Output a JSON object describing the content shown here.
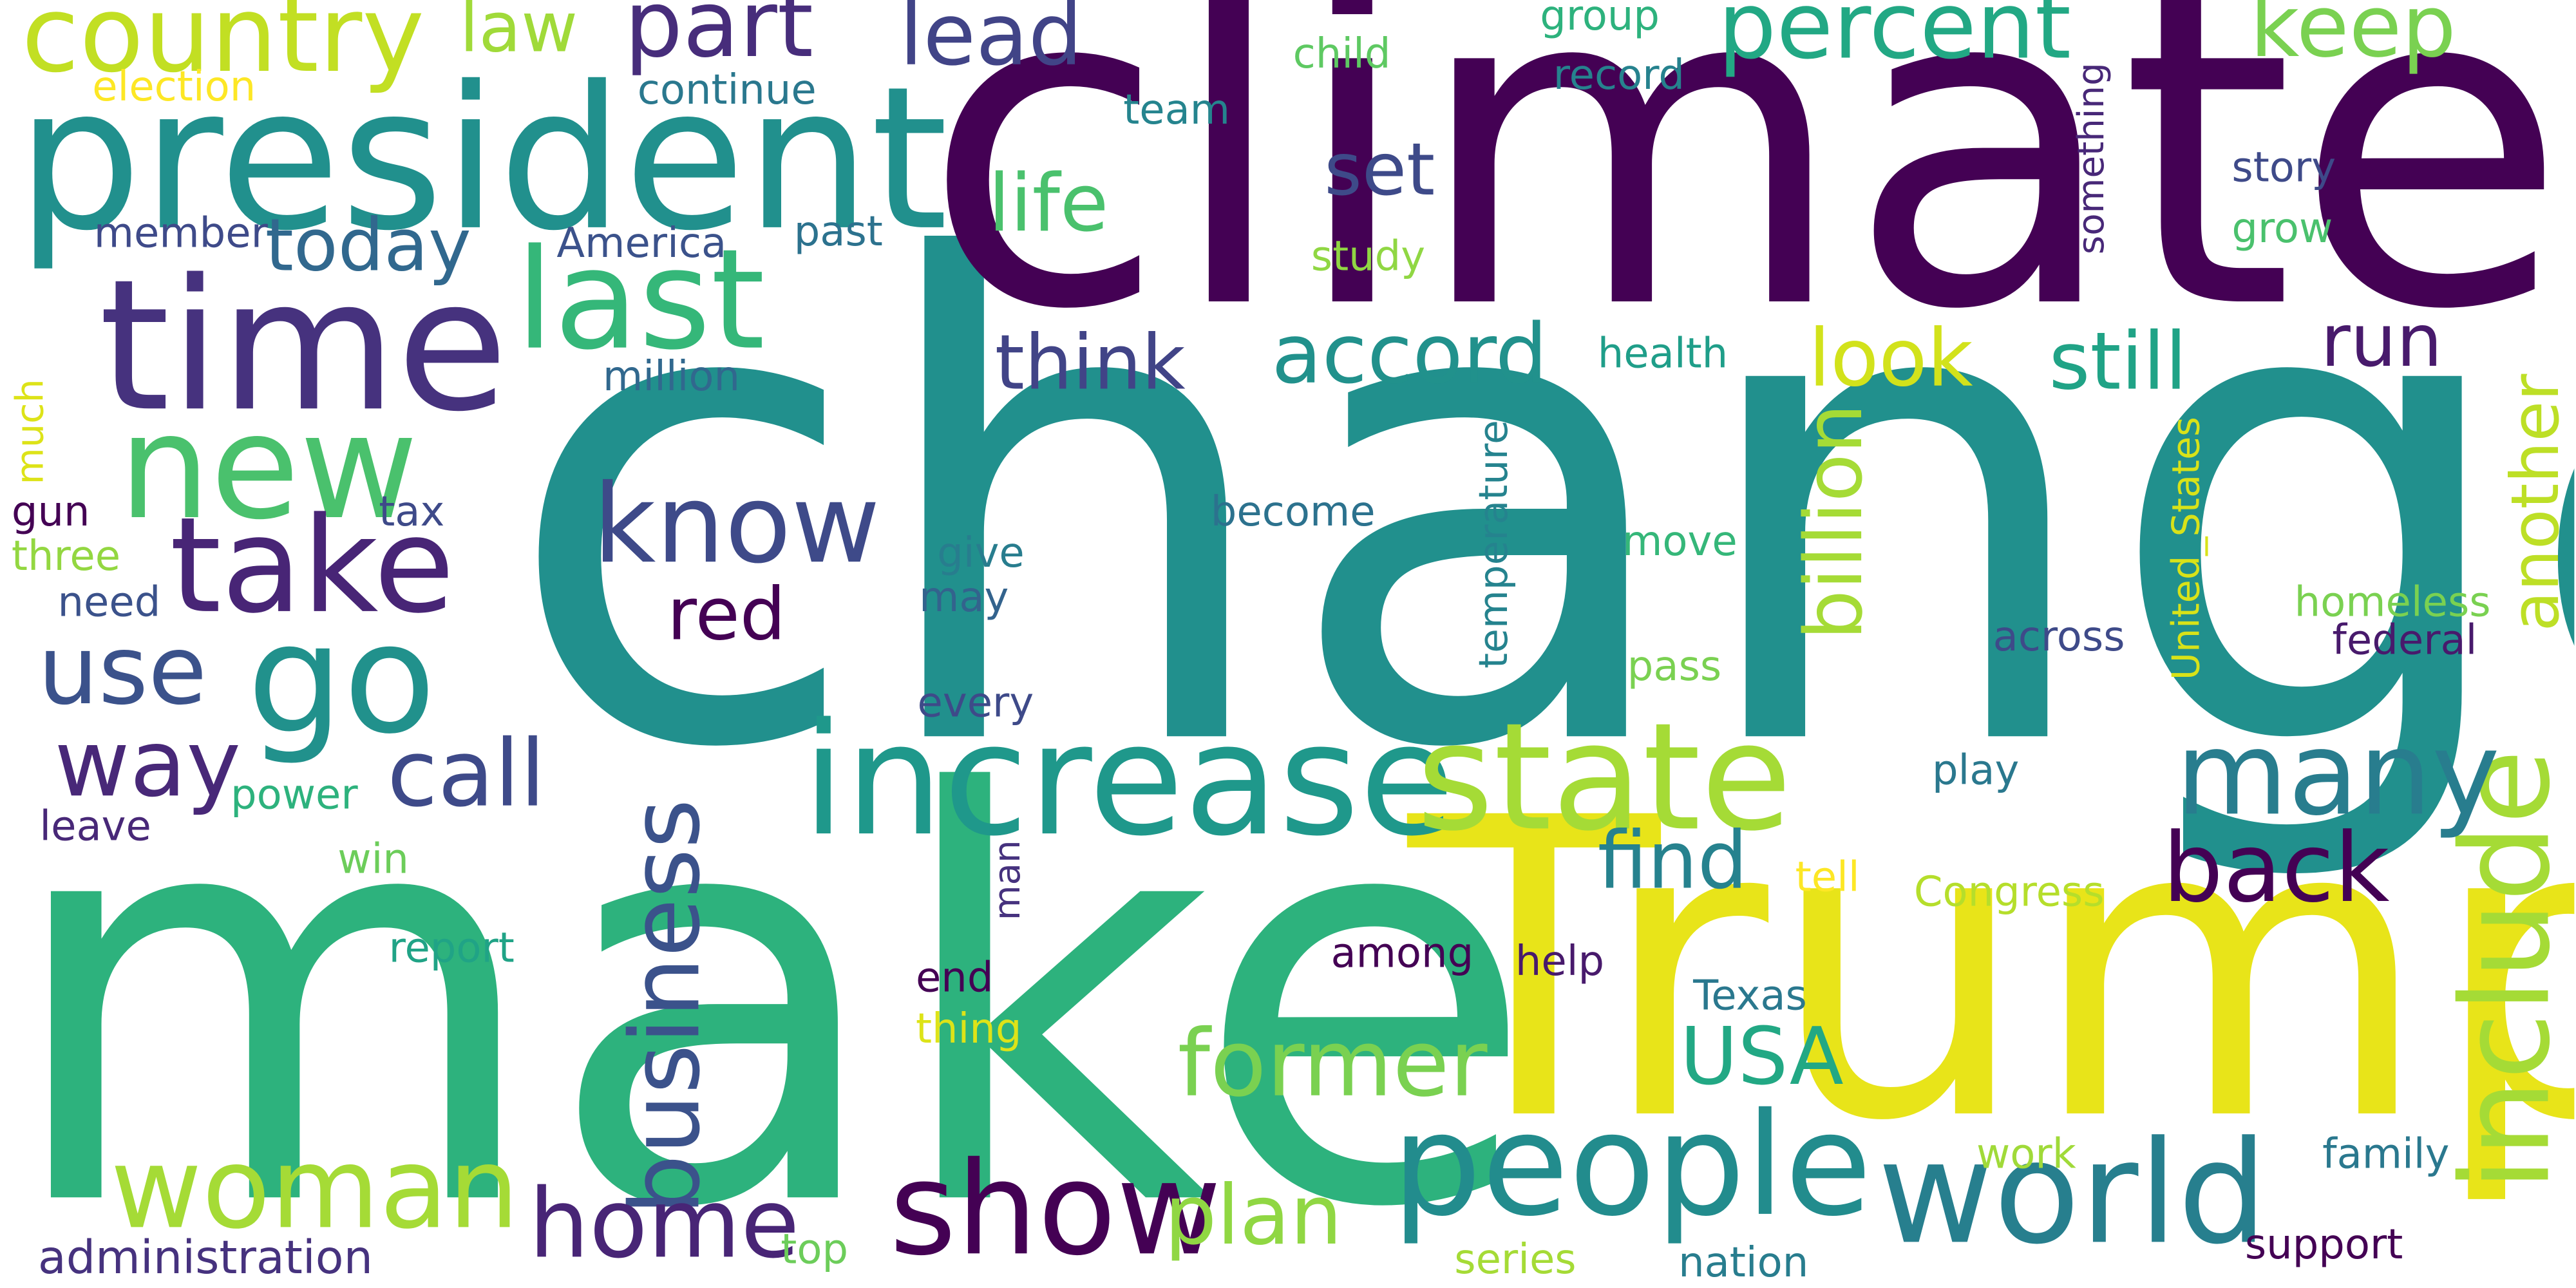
{
  "words": [
    {
      "text": "change",
      "color": "#21908d"
    },
    {
      "text": "climate",
      "color": "#440154"
    },
    {
      "text": "make",
      "color": "#2db27d"
    },
    {
      "text": "Trump",
      "color": "#e8e419"
    },
    {
      "text": "president",
      "color": "#21908d"
    },
    {
      "text": "time",
      "color": "#46327e"
    },
    {
      "text": "increase",
      "color": "#1f988b"
    },
    {
      "text": "state",
      "color": "#a5db36"
    },
    {
      "text": "people",
      "color": "#228c8d"
    },
    {
      "text": "world",
      "color": "#277f8e"
    },
    {
      "text": "new",
      "color": "#4ac16d"
    },
    {
      "text": "go",
      "color": "#21918c"
    },
    {
      "text": "take",
      "color": "#482576"
    },
    {
      "text": "show",
      "color": "#440154"
    },
    {
      "text": "include",
      "color": "#a5db36"
    },
    {
      "text": "last",
      "color": "#35b779"
    },
    {
      "text": "woman",
      "color": "#a5db36"
    },
    {
      "text": "many",
      "color": "#287d8e"
    },
    {
      "text": "business",
      "color": "#3b528b"
    },
    {
      "text": "know",
      "color": "#3e4a89"
    },
    {
      "text": "country",
      "color": "#c2df23"
    },
    {
      "text": "former",
      "color": "#7ad151"
    },
    {
      "text": "home",
      "color": "#482576"
    },
    {
      "text": "back",
      "color": "#440154"
    },
    {
      "text": "accord",
      "color": "#21918c"
    },
    {
      "text": "plan",
      "color": "#90d743"
    },
    {
      "text": "billion",
      "color": "#a5db36"
    },
    {
      "text": "percent",
      "color": "#22a884"
    },
    {
      "text": "use",
      "color": "#3b528b"
    },
    {
      "text": "call",
      "color": "#3e4a89"
    },
    {
      "text": "way",
      "color": "#482878"
    },
    {
      "text": "part",
      "color": "#472d7b"
    },
    {
      "text": "lead",
      "color": "#414487"
    },
    {
      "text": "keep",
      "color": "#7ad151"
    },
    {
      "text": "life",
      "color": "#4ac16d"
    },
    {
      "text": "look",
      "color": "#d2e21b"
    },
    {
      "text": "still",
      "color": "#20a386"
    },
    {
      "text": "find",
      "color": "#26828e"
    },
    {
      "text": "USA",
      "color": "#22a884"
    },
    {
      "text": "red",
      "color": "#440154"
    },
    {
      "text": "think",
      "color": "#414487"
    },
    {
      "text": "today",
      "color": "#31688e"
    },
    {
      "text": "set",
      "color": "#3e4a89"
    },
    {
      "text": "run",
      "color": "#481a6c"
    },
    {
      "text": "another",
      "color": "#bddf26"
    },
    {
      "text": "law",
      "color": "#a0da39"
    },
    {
      "text": "administration",
      "color": "#46327e"
    },
    {
      "text": "election",
      "color": "#fde725"
    },
    {
      "text": "continue",
      "color": "#2a788e"
    },
    {
      "text": "child",
      "color": "#5ec962"
    },
    {
      "text": "group",
      "color": "#2db27d"
    },
    {
      "text": "record",
      "color": "#26828e"
    },
    {
      "text": "something",
      "color": "#482878"
    },
    {
      "text": "team",
      "color": "#25848e"
    },
    {
      "text": "story",
      "color": "#3e4a89"
    },
    {
      "text": "member",
      "color": "#3e4a89"
    },
    {
      "text": "America",
      "color": "#3b528b"
    },
    {
      "text": "past",
      "color": "#2c728e"
    },
    {
      "text": "study",
      "color": "#90d743"
    },
    {
      "text": "grow",
      "color": "#4ac16d"
    },
    {
      "text": "health",
      "color": "#1f9e89"
    },
    {
      "text": "million",
      "color": "#31688e"
    },
    {
      "text": "much",
      "color": "#dde318"
    },
    {
      "text": "temperature",
      "color": "#25838e"
    },
    {
      "text": "United_States",
      "color": "#d8e219"
    },
    {
      "text": "gun",
      "color": "#440154"
    },
    {
      "text": "tax",
      "color": "#3e4a89"
    },
    {
      "text": "three",
      "color": "#93d741"
    },
    {
      "text": "become",
      "color": "#2c728e"
    },
    {
      "text": "move",
      "color": "#35b779"
    },
    {
      "text": "give",
      "color": "#287d8e"
    },
    {
      "text": "need",
      "color": "#3b528b"
    },
    {
      "text": "may",
      "color": "#33638d"
    },
    {
      "text": "homeless",
      "color": "#7ad151"
    },
    {
      "text": "across",
      "color": "#3e4a89"
    },
    {
      "text": "federal",
      "color": "#481a6c"
    },
    {
      "text": "every",
      "color": "#3e4a89"
    },
    {
      "text": "pass",
      "color": "#7ad151"
    },
    {
      "text": "power",
      "color": "#2db27d"
    },
    {
      "text": "play",
      "color": "#2a788e"
    },
    {
      "text": "leave",
      "color": "#482878"
    },
    {
      "text": "win",
      "color": "#6ccd5a"
    },
    {
      "text": "man",
      "color": "#46327e"
    },
    {
      "text": "tell",
      "color": "#fde725"
    },
    {
      "text": "Congress",
      "color": "#b5de2b"
    },
    {
      "text": "report",
      "color": "#20a386"
    },
    {
      "text": "among",
      "color": "#440154"
    },
    {
      "text": "help",
      "color": "#481a6c"
    },
    {
      "text": "end",
      "color": "#440154"
    },
    {
      "text": "Texas",
      "color": "#2a788e"
    },
    {
      "text": "thing",
      "color": "#dde318"
    },
    {
      "text": "work",
      "color": "#a0da39"
    },
    {
      "text": "family",
      "color": "#2a788e"
    },
    {
      "text": "top",
      "color": "#6ccd5a"
    },
    {
      "text": "series",
      "color": "#a5db36"
    },
    {
      "text": "nation",
      "color": "#287d8e"
    },
    {
      "text": "support",
      "color": "#440154"
    }
  ]
}
